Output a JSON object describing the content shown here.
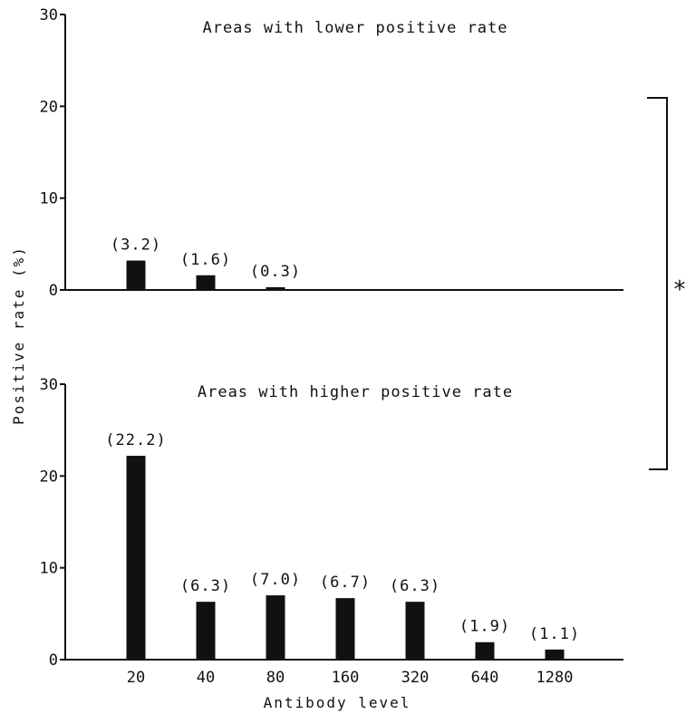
{
  "chart_data": [
    {
      "type": "bar",
      "title": "Areas with lower positive rate",
      "categories": [
        "20",
        "40",
        "80",
        "160",
        "320",
        "640",
        "1280"
      ],
      "values": [
        3.2,
        1.6,
        0.3,
        null,
        null,
        null,
        null
      ],
      "data_labels": [
        "(3.2)",
        "(1.6)",
        "(0.3)",
        "",
        "",
        "",
        ""
      ],
      "ylim": [
        0,
        30
      ],
      "yticks": [
        "0",
        "10",
        "20",
        "30"
      ],
      "grid": false
    },
    {
      "type": "bar",
      "title": "Areas with higher positive rate",
      "categories": [
        "20",
        "40",
        "80",
        "160",
        "320",
        "640",
        "1280"
      ],
      "values": [
        22.2,
        6.3,
        7.0,
        6.7,
        6.3,
        1.9,
        1.1
      ],
      "data_labels": [
        "(22.2)",
        "(6.3)",
        "(7.0)",
        "(6.7)",
        "(6.3)",
        "(1.9)",
        "(1.1)"
      ],
      "ylim": [
        0,
        30
      ],
      "yticks": [
        "0",
        "10",
        "20",
        "30"
      ],
      "grid": false
    }
  ],
  "shared": {
    "ylabel": "Positive rate (%)",
    "xlabel": "Antibody level",
    "x_tick_labels": [
      "20",
      "40",
      "80",
      "160",
      "320",
      "640",
      "1280"
    ],
    "significance_marker": "*",
    "bar_color": "#111111"
  }
}
